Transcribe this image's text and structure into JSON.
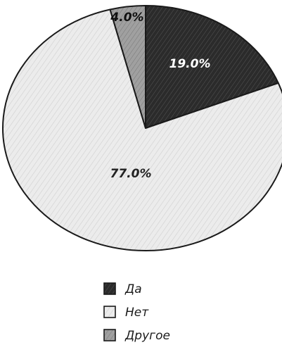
{
  "chart_data": {
    "type": "pie",
    "slices": [
      {
        "name": "Да",
        "value": 19.0,
        "label": "19.0%",
        "color": "#2b2b2b",
        "label_color": "#ffffff"
      },
      {
        "name": "Нет",
        "value": 77.0,
        "label": "77.0%",
        "color": "#e6e6e6",
        "label_color": "#222222"
      },
      {
        "name": "Другое",
        "value": 4.0,
        "label": "4.0%",
        "color": "#9a9a9a",
        "label_color": "#111111"
      }
    ],
    "start_angle_deg": 0,
    "direction": "clockwise",
    "legend": {
      "placement": "bottom",
      "entries": [
        "Да",
        "Нет",
        "Другое"
      ]
    }
  }
}
